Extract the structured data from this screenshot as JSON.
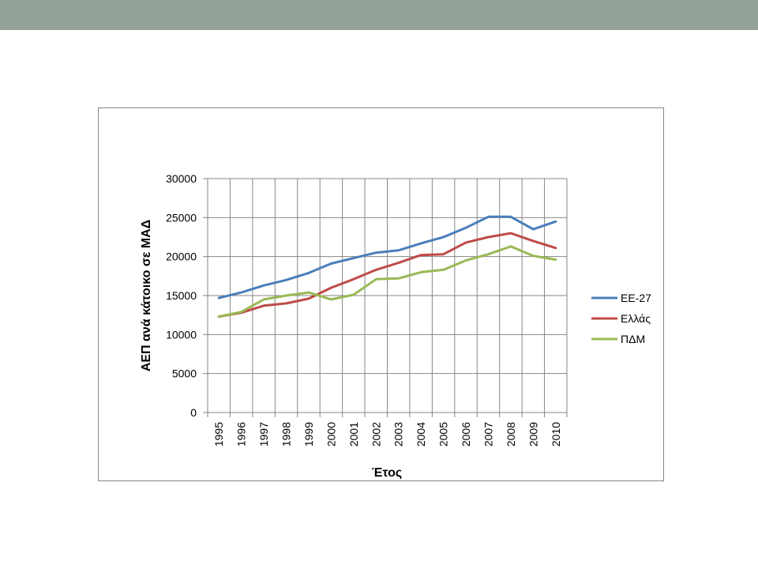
{
  "chart_data": {
    "type": "line",
    "categories": [
      "1995",
      "1996",
      "1997",
      "1998",
      "1999",
      "2000",
      "2001",
      "2002",
      "2003",
      "2004",
      "2005",
      "2006",
      "2007",
      "2008",
      "2009",
      "2010"
    ],
    "series": [
      {
        "name": "ΕΕ-27",
        "color": "#4a7ebb",
        "values": [
          14700,
          15400,
          16300,
          17000,
          17900,
          19100,
          19800,
          20500,
          20800,
          21700,
          22500,
          23700,
          25100,
          25100,
          23500,
          24500
        ]
      },
      {
        "name": "Ελλάς",
        "color": "#be4b48",
        "values": [
          12300,
          12800,
          13700,
          14000,
          14600,
          16000,
          17100,
          18300,
          19200,
          20200,
          20300,
          21800,
          22500,
          23000,
          22000,
          21100
        ]
      },
      {
        "name": "ΠΔΜ",
        "color": "#98b954",
        "values": [
          12300,
          12900,
          14500,
          15000,
          15400,
          14500,
          15100,
          17100,
          17200,
          18000,
          18300,
          19500,
          20300,
          21300,
          20100,
          19600
        ]
      }
    ],
    "title": "",
    "xlabel": "Έτος",
    "ylabel": "ΑΕΠ ανά κάτοικο σε ΜΑΔ",
    "ylim": [
      0,
      30000
    ],
    "yticks": [
      "0",
      "5000",
      "10000",
      "15000",
      "20000",
      "25000",
      "30000"
    ],
    "grid": true,
    "legend_position": "right"
  }
}
